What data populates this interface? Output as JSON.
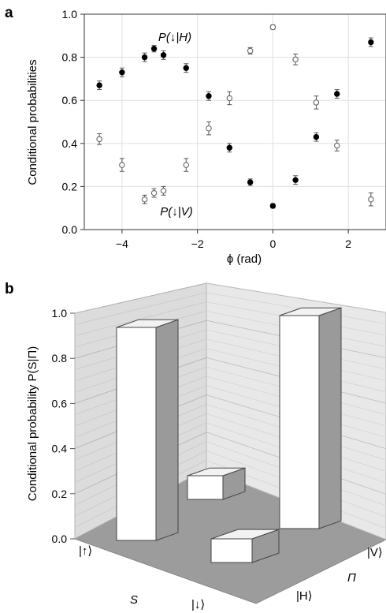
{
  "chart_data": [
    {
      "panel": "a",
      "type": "scatter",
      "xlabel": "ϕ (rad)",
      "ylabel": "Conditional probabilities",
      "xlim": [
        -5.0,
        3.0
      ],
      "ylim": [
        0.0,
        1.0
      ],
      "x_ticks": [
        "−4",
        "−2",
        "0",
        "2"
      ],
      "y_ticks": [
        "0.0",
        "0.2",
        "0.4",
        "0.6",
        "0.8",
        "1.0"
      ],
      "grid": true,
      "series": [
        {
          "name": "P(↓|H)",
          "marker": "filled-circle",
          "x": [
            -4.6,
            -4.0,
            -3.4,
            -3.15,
            -2.9,
            -2.3,
            -1.7,
            -1.15,
            -0.6,
            0.0,
            0.6,
            1.15,
            1.7,
            2.6
          ],
          "y": [
            0.67,
            0.73,
            0.8,
            0.84,
            0.81,
            0.75,
            0.62,
            0.38,
            0.22,
            0.11,
            0.23,
            0.43,
            0.63,
            0.87
          ],
          "err": [
            0.02,
            0.02,
            0.02,
            0.015,
            0.02,
            0.02,
            0.02,
            0.02,
            0.015,
            0.01,
            0.02,
            0.02,
            0.02,
            0.02
          ]
        },
        {
          "name": "P(↓|V)",
          "marker": "open-circle",
          "x": [
            -4.6,
            -4.0,
            -3.4,
            -3.15,
            -2.9,
            -2.3,
            -1.7,
            -1.15,
            -0.6,
            0.0,
            0.6,
            1.15,
            1.7,
            2.6
          ],
          "y": [
            0.42,
            0.3,
            0.14,
            0.17,
            0.18,
            0.3,
            0.47,
            0.61,
            0.83,
            0.94,
            0.79,
            0.59,
            0.39,
            0.14
          ],
          "err": [
            0.025,
            0.03,
            0.02,
            0.02,
            0.02,
            0.03,
            0.03,
            0.03,
            0.015,
            0.01,
            0.025,
            0.03,
            0.025,
            0.03
          ]
        }
      ]
    },
    {
      "panel": "b",
      "type": "bar",
      "projection": "3d",
      "ylabel": "Conditional probability P(S|Π)",
      "ylim": [
        0.0,
        1.0
      ],
      "y_ticks": [
        "0.0",
        "0.2",
        "0.4",
        "0.6",
        "0.8",
        "1.0"
      ],
      "axis_S": {
        "label": "S",
        "categories": [
          "|↑⟩",
          "|↓⟩"
        ]
      },
      "axis_Pi": {
        "label": "Π",
        "categories": [
          "|H⟩",
          "|V⟩"
        ]
      },
      "bars": [
        {
          "S": "|↑⟩",
          "Pi": "|H⟩",
          "value": 0.9
        },
        {
          "S": "|↑⟩",
          "Pi": "|V⟩",
          "value": 0.1
        },
        {
          "S": "|↓⟩",
          "Pi": "|H⟩",
          "value": 0.1
        },
        {
          "S": "|↓⟩",
          "Pi": "|V⟩",
          "value": 0.9
        }
      ],
      "grid": true
    }
  ]
}
